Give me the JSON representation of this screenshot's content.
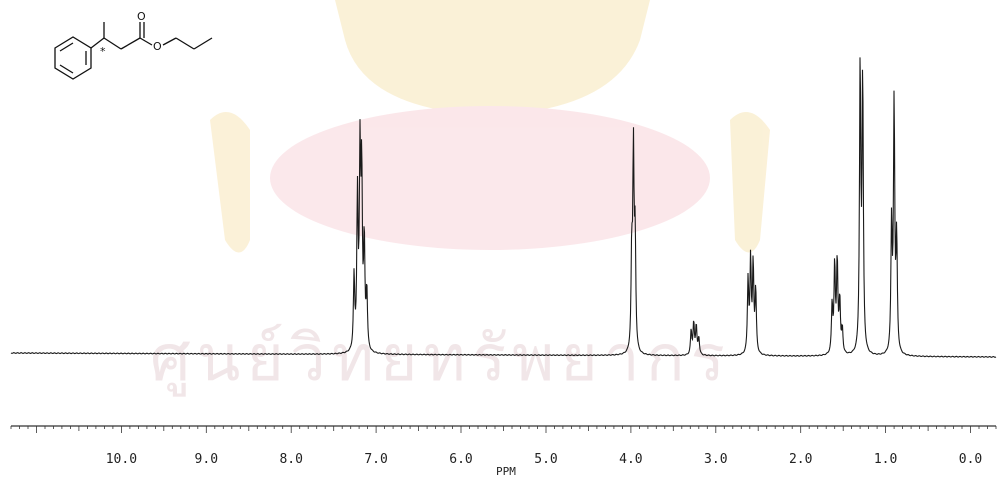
{
  "chart_data": {
    "type": "line",
    "title": "",
    "xlabel": "PPM",
    "ylabel": "",
    "x_reversed": true,
    "xlim": [
      11.3,
      -0.3
    ],
    "ylim": [
      0,
      100
    ],
    "x_ticks": [
      "10.0",
      "9.0",
      "8.0",
      "7.0",
      "6.0",
      "5.0",
      "4.0",
      "3.0",
      "2.0",
      "1.0",
      "0.0"
    ],
    "x_tick_values": [
      10,
      9,
      8,
      7,
      6,
      5,
      4,
      3,
      2,
      1,
      0
    ],
    "grid": false,
    "legend": "none",
    "baseline": 0,
    "peaks": [
      {
        "ppm": 7.26,
        "height": 30
      },
      {
        "ppm": 7.22,
        "height": 62
      },
      {
        "ppm": 7.19,
        "height": 77
      },
      {
        "ppm": 7.17,
        "height": 70
      },
      {
        "ppm": 7.14,
        "height": 44
      },
      {
        "ppm": 7.11,
        "height": 24
      },
      {
        "ppm": 3.99,
        "height": 38
      },
      {
        "ppm": 3.97,
        "height": 80
      },
      {
        "ppm": 3.95,
        "height": 45
      },
      {
        "ppm": 3.29,
        "height": 10
      },
      {
        "ppm": 3.26,
        "height": 13
      },
      {
        "ppm": 3.23,
        "height": 12
      },
      {
        "ppm": 3.2,
        "height": 7
      },
      {
        "ppm": 2.62,
        "height": 30
      },
      {
        "ppm": 2.59,
        "height": 38
      },
      {
        "ppm": 2.56,
        "height": 36
      },
      {
        "ppm": 2.53,
        "height": 26
      },
      {
        "ppm": 1.63,
        "height": 20
      },
      {
        "ppm": 1.6,
        "height": 36
      },
      {
        "ppm": 1.57,
        "height": 38
      },
      {
        "ppm": 1.54,
        "height": 22
      },
      {
        "ppm": 1.51,
        "height": 10
      },
      {
        "ppm": 1.3,
        "height": 117
      },
      {
        "ppm": 1.27,
        "height": 112
      },
      {
        "ppm": 0.93,
        "height": 52
      },
      {
        "ppm": 0.9,
        "height": 102
      },
      {
        "ppm": 0.87,
        "height": 46
      }
    ]
  },
  "structure": {
    "stereocenter_mark": "*",
    "carbonyl_oxygen": "O",
    "ester_oxygen": "O"
  },
  "colors": {
    "trace": "#1a1a1a",
    "watermark": "#f5e3b0",
    "watermark_pink": "#f6d6da"
  }
}
